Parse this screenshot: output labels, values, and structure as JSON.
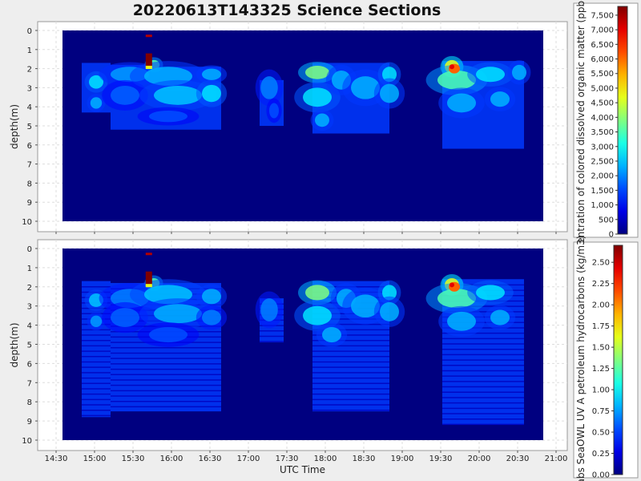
{
  "title": "20220613T143325 Science Sections",
  "chart_data": [
    {
      "type": "heatmap",
      "title": "20220613T143325 Science Sections",
      "xlabel": "UTC Time",
      "ylabel": "depth(m)",
      "x_ticks": [
        "14:30",
        "15:00",
        "15:30",
        "16:00",
        "16:30",
        "17:00",
        "17:30",
        "18:00",
        "18:30",
        "19:00",
        "19:30",
        "20:00",
        "20:30",
        "21:00"
      ],
      "y_ticks": [
        "0",
        "1",
        "2",
        "3",
        "4",
        "5",
        "6",
        "7",
        "8",
        "9",
        "10"
      ],
      "ylim": [
        10,
        0
      ],
      "grid": true,
      "colorbar": {
        "label": "entration of colored dissolved organic matter (ppb)",
        "min": 0,
        "max": 7800,
        "ticks": [
          "0",
          "500",
          "1,000",
          "1,500",
          "2,000",
          "2,500",
          "3,000",
          "3,500",
          "4,000",
          "4,500",
          "5,000",
          "5,500",
          "6,000",
          "6,500",
          "7,000",
          "7,500"
        ]
      }
    },
    {
      "type": "heatmap",
      "xlabel": "UTC Time",
      "ylabel": "depth(m)",
      "x_ticks": [
        "14:30",
        "15:00",
        "15:30",
        "16:00",
        "16:30",
        "17:00",
        "17:30",
        "18:00",
        "18:30",
        "19:00",
        "19:30",
        "20:00",
        "20:30",
        "21:00"
      ],
      "y_ticks": [
        "0",
        "1",
        "2",
        "3",
        "4",
        "5",
        "6",
        "7",
        "8",
        "9",
        "10"
      ],
      "ylim": [
        10,
        0
      ],
      "grid": true,
      "colorbar": {
        "label": "abs SeaOWL UV A petroleum hydrocarbons (kg/m3)",
        "min": 0,
        "max": 2.7,
        "ticks": [
          "0.00",
          "0.25",
          "0.50",
          "0.75",
          "1.00",
          "1.25",
          "1.50",
          "1.75",
          "2.00",
          "2.25",
          "2.50"
        ]
      }
    }
  ]
}
